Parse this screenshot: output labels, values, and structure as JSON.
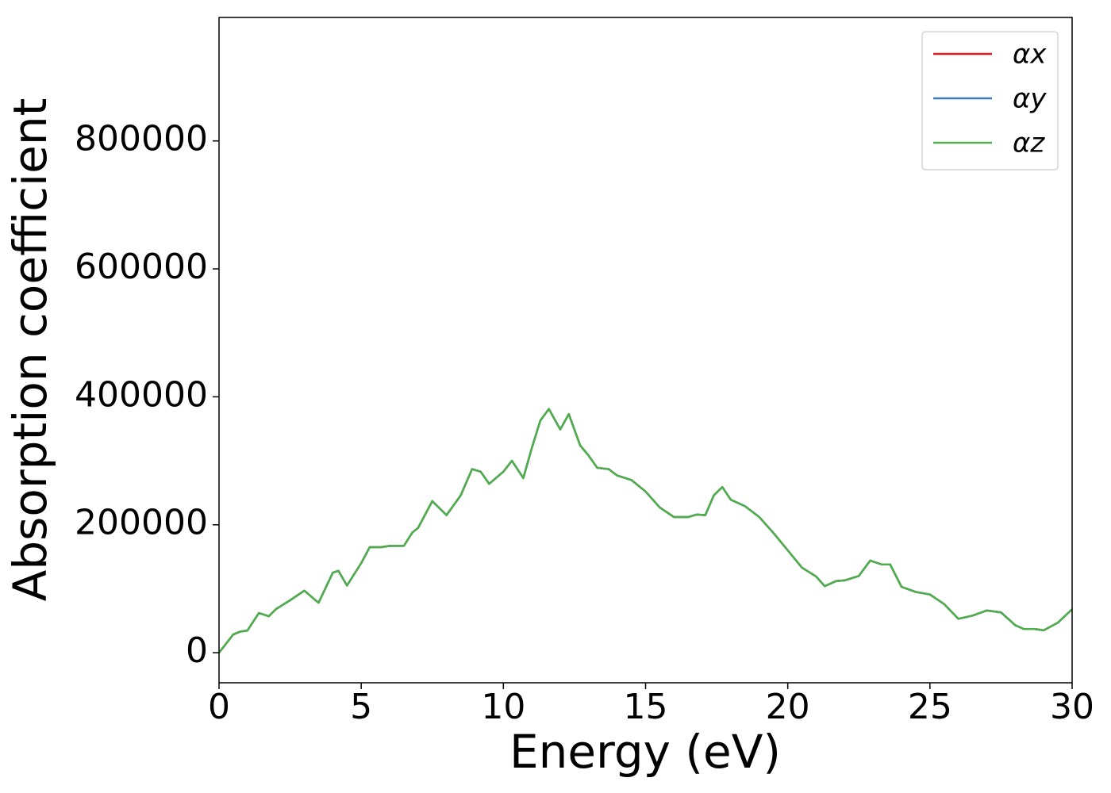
{
  "chart_data": {
    "type": "line",
    "x_label": "Energy (eV)",
    "y_label": "Absorption coefficient",
    "x": [
      0,
      0.5,
      0.75,
      1.0,
      1.4,
      1.75,
      2.0,
      2.5,
      3.0,
      3.5,
      4.0,
      4.2,
      4.5,
      5.0,
      5.3,
      5.7,
      6.0,
      6.5,
      6.8,
      7.0,
      7.5,
      8.0,
      8.5,
      8.9,
      9.2,
      9.5,
      10.0,
      10.3,
      10.7,
      11.0,
      11.3,
      11.6,
      12.0,
      12.3,
      12.7,
      13.0,
      13.3,
      13.7,
      14.0,
      14.5,
      15.0,
      15.5,
      16.0,
      16.5,
      16.8,
      17.1,
      17.4,
      17.7,
      18.0,
      18.5,
      19.0,
      19.5,
      20.0,
      20.5,
      21.0,
      21.3,
      21.7,
      22.0,
      22.5,
      22.9,
      23.3,
      23.6,
      24.0,
      24.5,
      25.0,
      25.5,
      26.0,
      26.5,
      27.0,
      27.5,
      28.0,
      28.3,
      28.7,
      29.0,
      29.5,
      30.0
    ],
    "series": [
      {
        "name": "αx",
        "color": "#e41a1c",
        "values": [
          0,
          28500,
          33000,
          34700,
          62000,
          57000,
          68000,
          82000,
          97000,
          78000,
          125000,
          128000,
          105000,
          140000,
          165000,
          165000,
          167000,
          167000,
          188000,
          195000,
          237000,
          215000,
          246000,
          287000,
          283000,
          264000,
          283000,
          300000,
          273000,
          320000,
          363000,
          381000,
          349000,
          373000,
          324000,
          308000,
          289000,
          287000,
          277000,
          270000,
          252000,
          227000,
          212000,
          212000,
          216000,
          215000,
          246000,
          259000,
          239000,
          229000,
          212000,
          187000,
          160000,
          133000,
          119000,
          104000,
          112000,
          113000,
          120000,
          144000,
          138000,
          138000,
          103000,
          95000,
          91000,
          76000,
          53000,
          58000,
          66000,
          63000,
          43000,
          37000,
          37000,
          35000,
          47000,
          68000
        ]
      },
      {
        "name": "αy",
        "color": "#377eb8",
        "values": [
          0,
          28500,
          33000,
          34700,
          62000,
          57000,
          68000,
          82000,
          97000,
          78000,
          125000,
          128000,
          105000,
          140000,
          165000,
          165000,
          167000,
          167000,
          188000,
          195000,
          237000,
          215000,
          246000,
          287000,
          283000,
          264000,
          283000,
          300000,
          273000,
          320000,
          363000,
          381000,
          349000,
          373000,
          324000,
          308000,
          289000,
          287000,
          277000,
          270000,
          252000,
          227000,
          212000,
          212000,
          216000,
          215000,
          246000,
          259000,
          239000,
          229000,
          212000,
          187000,
          160000,
          133000,
          119000,
          104000,
          112000,
          113000,
          120000,
          144000,
          138000,
          138000,
          103000,
          95000,
          91000,
          76000,
          53000,
          58000,
          66000,
          63000,
          43000,
          37000,
          37000,
          35000,
          47000,
          68000
        ]
      },
      {
        "name": "αz",
        "color": "#4daf4a",
        "values": [
          0,
          28500,
          33000,
          34700,
          62000,
          57000,
          68000,
          82000,
          97000,
          78000,
          125000,
          128000,
          105000,
          140000,
          165000,
          165000,
          167000,
          167000,
          188000,
          195000,
          237000,
          215000,
          246000,
          287000,
          283000,
          264000,
          283000,
          300000,
          273000,
          320000,
          363000,
          381000,
          349000,
          373000,
          324000,
          308000,
          289000,
          287000,
          277000,
          270000,
          252000,
          227000,
          212000,
          212000,
          216000,
          215000,
          246000,
          259000,
          239000,
          229000,
          212000,
          187000,
          160000,
          133000,
          119000,
          104000,
          112000,
          113000,
          120000,
          144000,
          138000,
          138000,
          103000,
          95000,
          91000,
          76000,
          53000,
          58000,
          66000,
          63000,
          43000,
          37000,
          37000,
          35000,
          47000,
          68000
        ]
      }
    ],
    "xlim": [
      0,
      30
    ],
    "xticks": [
      0,
      5,
      10,
      15,
      20,
      25,
      30
    ],
    "ylim": [
      -47000,
      993000
    ],
    "yticks": [
      0,
      200000,
      400000,
      600000,
      800000
    ],
    "grid": false,
    "legend": "upper right"
  }
}
